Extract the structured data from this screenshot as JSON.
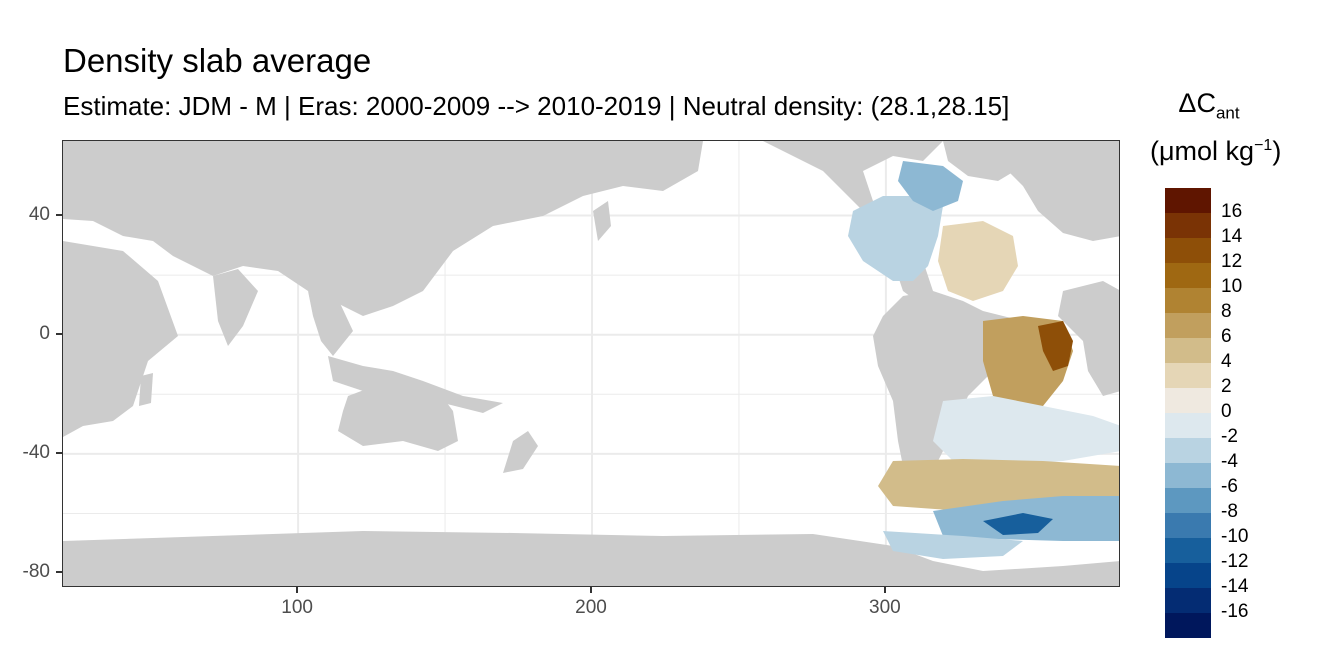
{
  "title": "Density slab average",
  "subtitle": "Estimate: JDM - M | Eras: 2000-2009 --> 2010-2019 | Neutral density: (28.1,28.15]",
  "legend": {
    "title_main": "ΔC",
    "title_sub": "ant",
    "unit_pre": "(μmol kg",
    "unit_sup": "−1",
    "unit_post": ")",
    "labels": [
      "16",
      "14",
      "12",
      "10",
      "8",
      "6",
      "4",
      "2",
      "0",
      "-2",
      "-4",
      "-6",
      "-8",
      "-10",
      "-12",
      "-14",
      "-16"
    ],
    "colors": [
      "#5f1500",
      "#7a3305",
      "#8e4f08",
      "#9f6812",
      "#b08332",
      "#c19f5e",
      "#d2bc8a",
      "#e5d6b6",
      "#efe9e0",
      "#dde8ee",
      "#b9d3e2",
      "#8db8d3",
      "#5d98c0",
      "#3a7aaf",
      "#175f9c",
      "#06448a",
      "#042c73",
      "#00175c"
    ]
  },
  "chart_data": {
    "type": "heatmap",
    "xlabel": "",
    "ylabel": "",
    "x_ticks": [
      100,
      200,
      300
    ],
    "y_ticks": [
      40,
      0,
      -40,
      -80
    ],
    "xlim": [
      20,
      380
    ],
    "ylim": [
      -85,
      65
    ],
    "grid": true,
    "land_color": "#cccccc",
    "legend_position": "right"
  }
}
